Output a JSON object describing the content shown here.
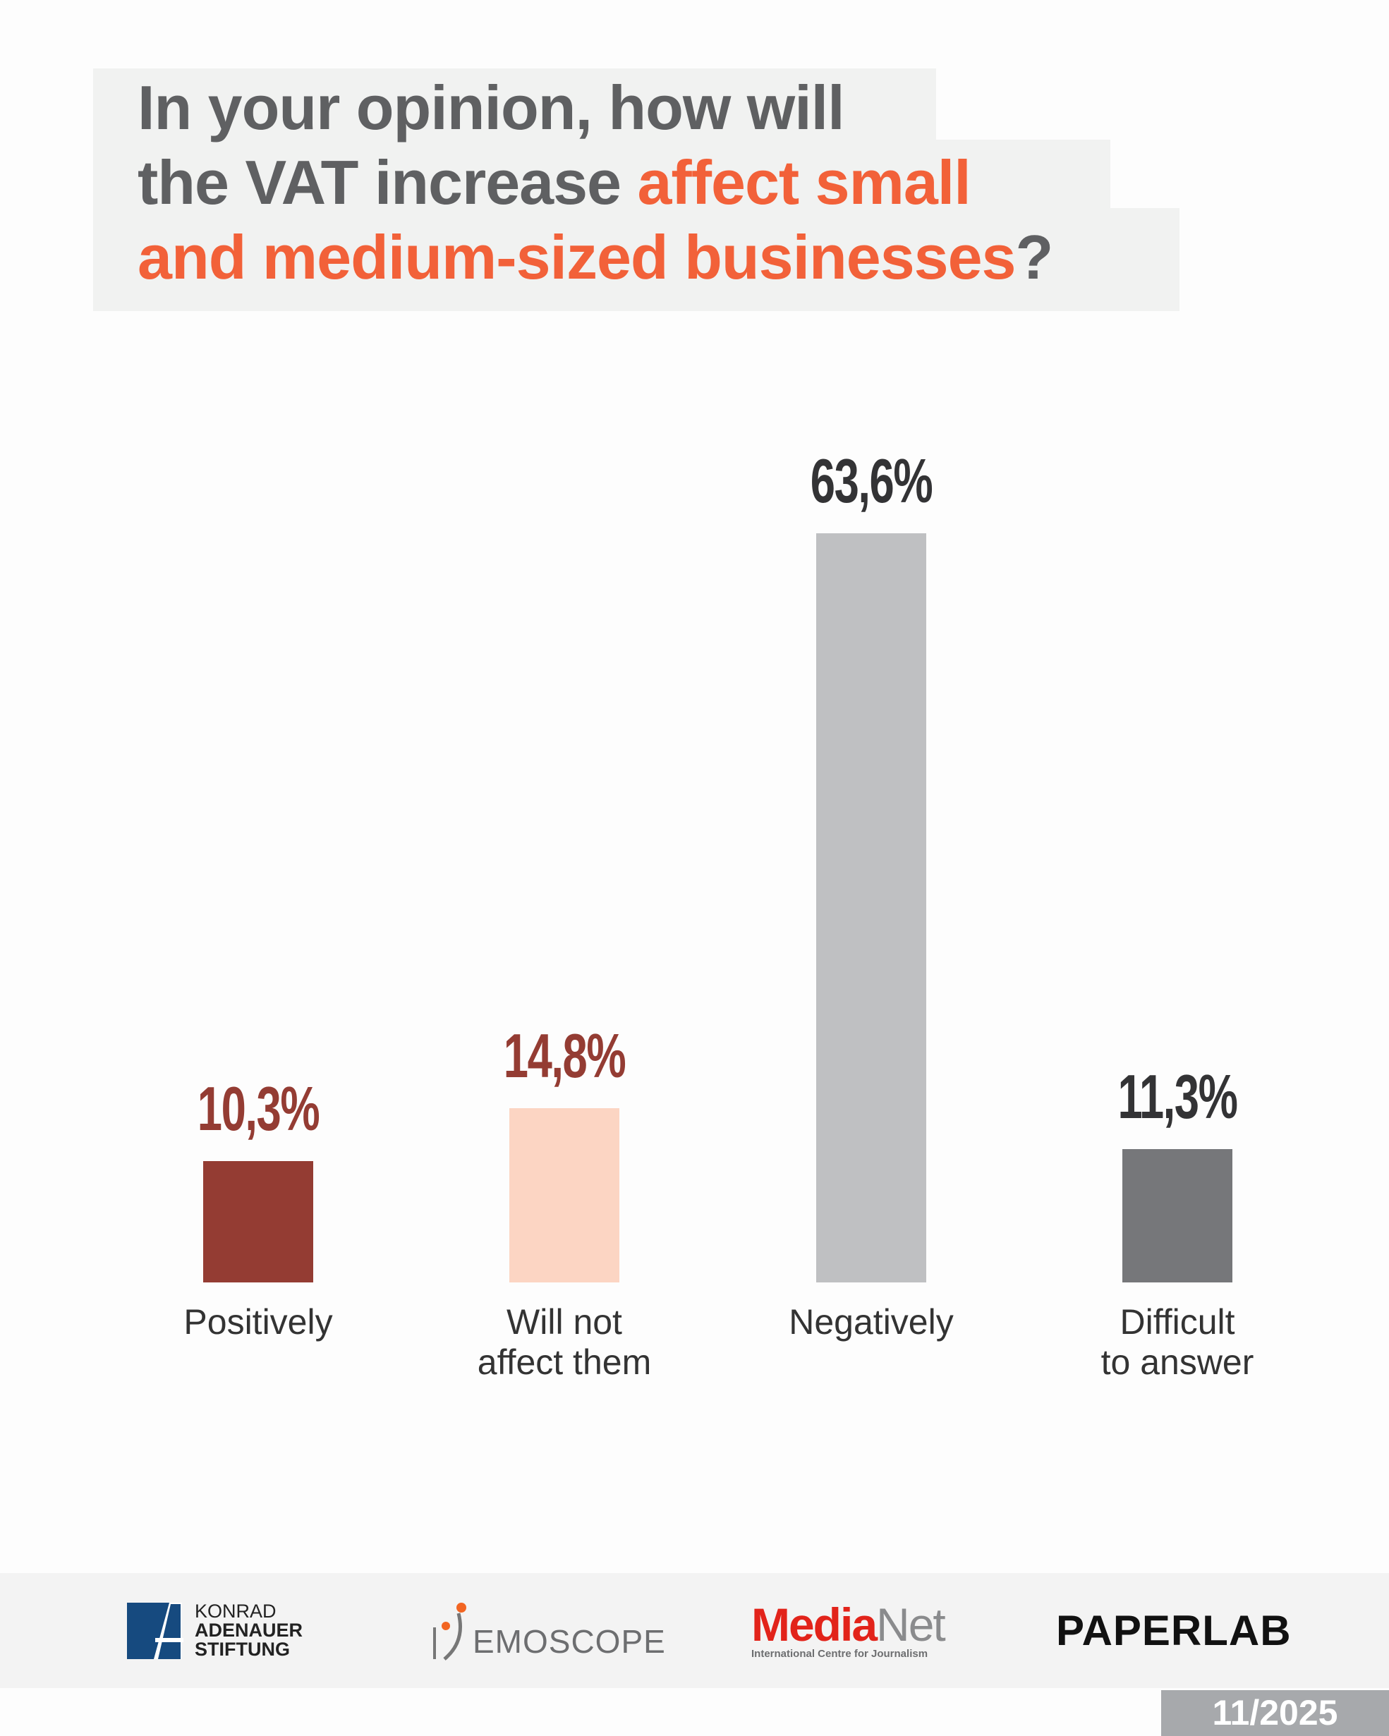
{
  "title": {
    "line1": "In your opinion, how will",
    "line2_plain": "the VAT increase ",
    "line2_highlight": "affect small",
    "line3_highlight": "and medium-sized businesses",
    "line3_plain": "?"
  },
  "colors": {
    "title_gray": "#5f6062",
    "accent": "#f26139"
  },
  "chart_data": {
    "type": "bar",
    "title": "In your opinion, how will the VAT increase affect small and medium-sized businesses?",
    "categories": [
      "Positively",
      "Will not affect them",
      "Negatively",
      "Difficult to answer"
    ],
    "category_lines": [
      [
        "Positively"
      ],
      [
        "Will not",
        "affect them"
      ],
      [
        "Negatively"
      ],
      [
        "Difficult",
        "to answer"
      ]
    ],
    "values": [
      10.3,
      14.8,
      63.6,
      11.3
    ],
    "value_labels": [
      "10,3%",
      "14,8%",
      "63,6%",
      "11,3%"
    ],
    "bar_colors": [
      "#943c33",
      "#fcd5c3",
      "#bfc0c2",
      "#76777a"
    ],
    "label_colors": [
      "#943c33",
      "#943c33",
      "#333335",
      "#333335"
    ],
    "unit": "%",
    "xlabel": "",
    "ylabel": "",
    "ylim": [
      0,
      70
    ],
    "grid": false,
    "legend": "none"
  },
  "footer": {
    "logos": {
      "kas": [
        "KONRAD",
        "ADENAUER",
        "STIFTUNG"
      ],
      "demoscope": "EMOSCOPE",
      "medianet_red": "Media",
      "medianet_gray": "Net",
      "medianet_sub": "International Centre for Journalism",
      "paperlab": "PAPERLAB"
    },
    "date": "11/2025"
  }
}
